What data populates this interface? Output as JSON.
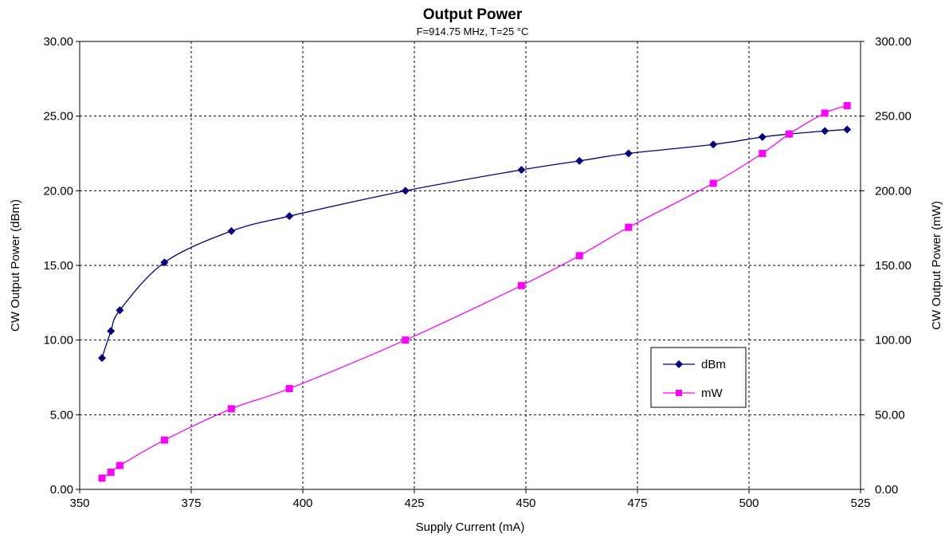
{
  "chart_data": {
    "type": "line",
    "title": "Output Power",
    "subtitle": "F=914.75 MHz, T=25 °C",
    "xlabel": "Supply Current (mA)",
    "ylabel_left": "CW Output Power (dBm)",
    "ylabel_right": "CW Output Power (mW)",
    "xlim": [
      350,
      525
    ],
    "ylim_left": [
      0,
      30
    ],
    "ylim_right": [
      0,
      300
    ],
    "x_ticks": [
      "350",
      "375",
      "400",
      "425",
      "450",
      "475",
      "500",
      "525"
    ],
    "y_ticks_left": [
      "0.00",
      "5.00",
      "10.00",
      "15.00",
      "20.00",
      "25.00",
      "30.00"
    ],
    "y_ticks_right": [
      "0.00",
      "50.00",
      "100.00",
      "150.00",
      "200.00",
      "250.00",
      "300.00"
    ],
    "grid": true,
    "legend_position": "lower-right",
    "series": [
      {
        "name": "dBm",
        "axis": "left",
        "color": "#000080",
        "marker": "diamond",
        "x": [
          355,
          357,
          359,
          369,
          384,
          397,
          423,
          449,
          462,
          473,
          492,
          503,
          509,
          517,
          522
        ],
        "y": [
          8.8,
          10.6,
          12.0,
          15.2,
          17.3,
          18.3,
          20.0,
          21.4,
          22.0,
          22.5,
          23.1,
          23.6,
          23.8,
          24.0,
          24.1
        ]
      },
      {
        "name": "mW",
        "axis": "right",
        "color": "#ff00ff",
        "marker": "square",
        "x": [
          355,
          357,
          359,
          369,
          384,
          397,
          423,
          449,
          462,
          473,
          492,
          503,
          509,
          517,
          522
        ],
        "y": [
          7.5,
          11.5,
          16.0,
          33.0,
          54.0,
          67.5,
          100.0,
          136.5,
          156.5,
          175.5,
          205.0,
          225.0,
          238.0,
          252.0,
          257.0
        ]
      }
    ]
  }
}
